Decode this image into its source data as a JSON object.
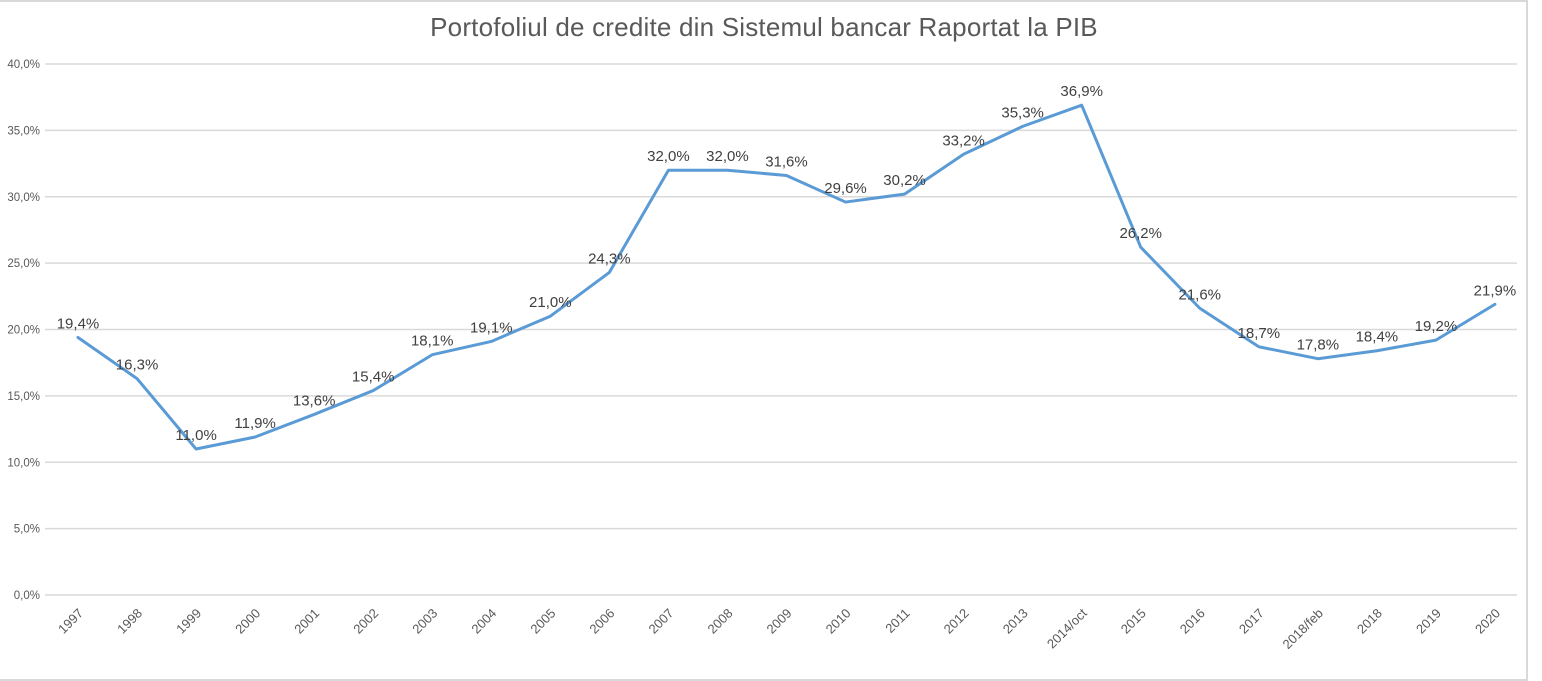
{
  "chart_data": {
    "type": "line",
    "title": "Portofoliul de credite din Sistemul bancar Raportat la PIB",
    "categories": [
      "1997",
      "1998",
      "1999",
      "2000",
      "2001",
      "2002",
      "2003",
      "2004",
      "2005",
      "2006",
      "2007",
      "2008",
      "2009",
      "2010",
      "2011",
      "2012",
      "2013",
      "2014/oct",
      "2015",
      "2016",
      "2017",
      "2018/feb",
      "2018",
      "2019",
      "2020"
    ],
    "values": [
      19.4,
      16.3,
      11.0,
      11.9,
      13.6,
      15.4,
      18.1,
      19.1,
      21.0,
      24.3,
      32.0,
      32.0,
      31.6,
      29.6,
      30.2,
      33.2,
      35.3,
      36.9,
      26.2,
      21.6,
      18.7,
      17.8,
      18.4,
      19.2,
      21.9
    ],
    "data_labels": [
      "19,4%",
      "16,3%",
      "11,0%",
      "11,9%",
      "13,6%",
      "15,4%",
      "18,1%",
      "19,1%",
      "21,0%",
      "24,3%",
      "32,0%",
      "32,0%",
      "31,6%",
      "29,6%",
      "30,2%",
      "33,2%",
      "35,3%",
      "36,9%",
      "26,2%",
      "21,6%",
      "18,7%",
      "17,8%",
      "18,4%",
      "19,2%",
      "21,9%"
    ],
    "y_tick_labels": [
      "0,0%",
      "5,0%",
      "10,0%",
      "15,0%",
      "20,0%",
      "25,0%",
      "30,0%",
      "35,0%",
      "40,0%"
    ],
    "ylim": [
      0,
      40
    ],
    "y_step": 5,
    "grid": true,
    "legend": "none",
    "colors": {
      "line": "#5B9BD5",
      "gridline": "#D9D9D9",
      "axis_text": "#595959",
      "data_label_text": "#404040",
      "title_text": "#595959"
    }
  }
}
